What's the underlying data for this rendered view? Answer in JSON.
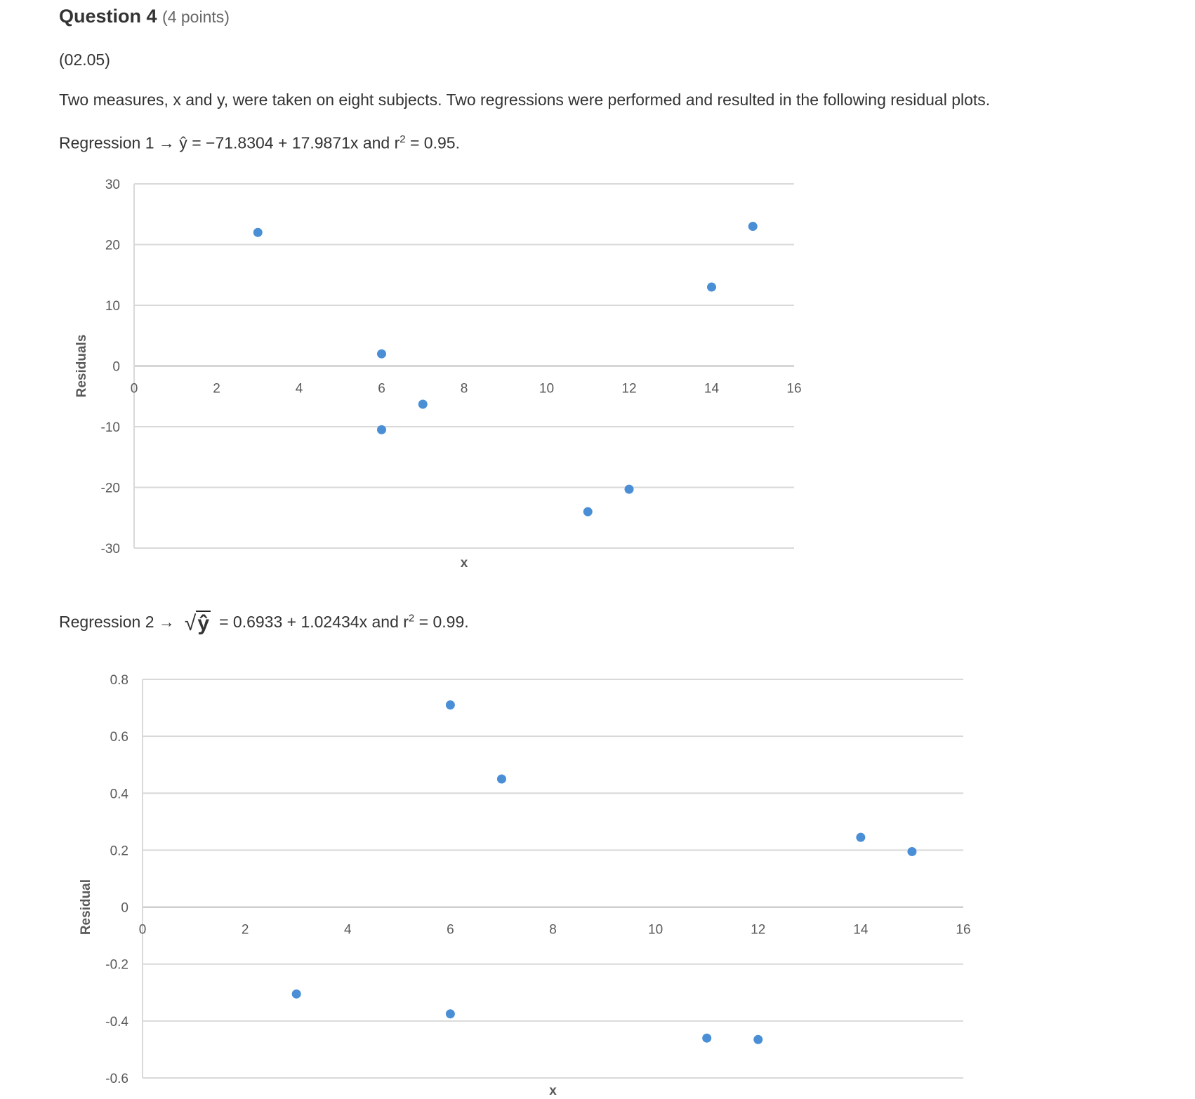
{
  "question": {
    "title": "Question 4",
    "points": "(4 points)",
    "code": "(02.05)",
    "intro": "Two measures, x and y, were taken on eight subjects. Two regressions were performed and resulted in the following residual plots.",
    "reg1_prefix": "Regression 1 → ŷ = −71.8304 + 17.9871x and r",
    "reg1_exp": "2",
    "reg1_suffix": " = 0.95.",
    "reg2_prefix": "Regression 2 →",
    "reg2_radicand": "ŷ",
    "reg2_mid": "= 0.6933 + 1.02434x and r",
    "reg2_exp": "2",
    "reg2_suffix": " = 0.99."
  },
  "colors": {
    "points": "#4a8fd6",
    "grid": "#d9d9d9",
    "ticks": "#595959"
  },
  "chart_data": [
    {
      "type": "scatter",
      "title": "",
      "xlabel": "x",
      "ylabel": "Residuals",
      "xlim": [
        0,
        16
      ],
      "ylim": [
        -30,
        30
      ],
      "xticks": [
        "0",
        "2",
        "4",
        "6",
        "8",
        "10",
        "12",
        "14",
        "16"
      ],
      "yticks": [
        "30",
        "20",
        "10",
        "0",
        "-10",
        "-20",
        "-30"
      ],
      "grid": true,
      "x": [
        3,
        6,
        6,
        7,
        11,
        12,
        14,
        15
      ],
      "y": [
        22,
        2,
        -10.5,
        -6.3,
        -24,
        -20.3,
        13,
        23
      ]
    },
    {
      "type": "scatter",
      "title": "",
      "xlabel": "x",
      "ylabel": "Residual",
      "xlim": [
        0,
        16
      ],
      "ylim": [
        -0.6,
        0.8
      ],
      "xticks": [
        "0",
        "2",
        "4",
        "6",
        "8",
        "10",
        "12",
        "14",
        "16"
      ],
      "yticks": [
        "0.8",
        "0.6",
        "0.4",
        "0.2",
        "0",
        "-0.2",
        "-0.4",
        "-0.6"
      ],
      "grid": true,
      "x": [
        3,
        6,
        6,
        7,
        11,
        12,
        14,
        15
      ],
      "y": [
        -0.305,
        0.71,
        -0.375,
        0.45,
        -0.46,
        -0.465,
        0.245,
        0.195
      ]
    }
  ]
}
